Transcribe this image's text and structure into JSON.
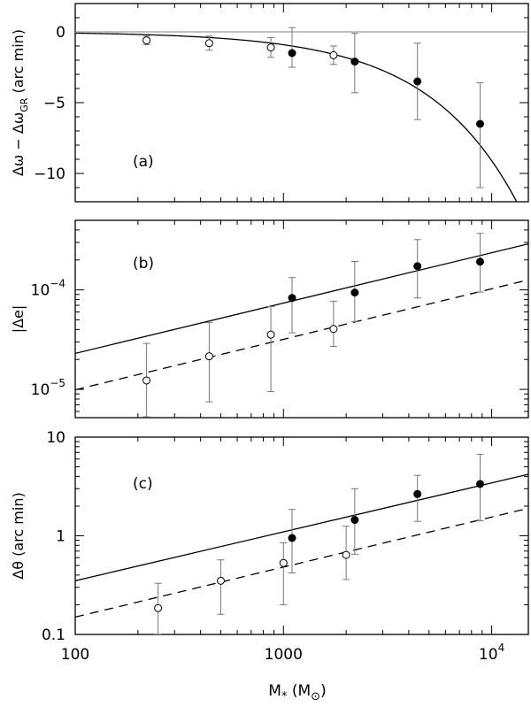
{
  "chart_data": [
    {
      "panel_label": "(a)",
      "type": "scatter",
      "ylabel": {
        "main": "Δω − Δω",
        "sub": "GR",
        "tail": " (arc min)"
      },
      "yscale": "linear",
      "xscale": "log",
      "xlim": [
        100,
        15000
      ],
      "ylim": [
        -12,
        2
      ],
      "yticks": [
        {
          "v": 0,
          "t": "0"
        },
        {
          "v": -5,
          "t": "−5"
        },
        {
          "v": -10,
          "t": "−10"
        }
      ],
      "reference_line_y": 0,
      "open_points": [
        {
          "x": 220,
          "y": -0.6,
          "lo": -0.9,
          "hi": -0.3
        },
        {
          "x": 440,
          "y": -0.8,
          "lo": -1.3,
          "hi": -0.3
        },
        {
          "x": 870,
          "y": -1.1,
          "lo": -1.8,
          "hi": -0.4
        },
        {
          "x": 1740,
          "y": -1.65,
          "lo": -2.3,
          "hi": -1.0
        }
      ],
      "filled_points": [
        {
          "x": 1100,
          "y": -1.5,
          "lo": -2.5,
          "hi": 0.3
        },
        {
          "x": 2200,
          "y": -2.1,
          "lo": -4.3,
          "hi": -0.1
        },
        {
          "x": 4400,
          "y": -3.5,
          "lo": -6.2,
          "hi": -0.8
        },
        {
          "x": 8800,
          "y": -6.5,
          "lo": -11.0,
          "hi": -3.6
        }
      ],
      "fit_lines": [
        {
          "style": "solid",
          "form": "linear",
          "slope_per_mass": -0.00091
        }
      ]
    },
    {
      "panel_label": "(b)",
      "type": "scatter",
      "ylabel": {
        "main": "|Δe|"
      },
      "yscale": "log",
      "xscale": "log",
      "xlim": [
        100,
        15000
      ],
      "ylim": [
        5.2e-06,
        0.0005
      ],
      "yticks": [
        {
          "v": 1e-05,
          "base": "10",
          "exp": "−5"
        },
        {
          "v": 0.0001,
          "base": "10",
          "exp": "−4"
        }
      ],
      "open_points": [
        {
          "x": 220,
          "y": 1.23e-05,
          "lo": 5.3e-06,
          "hi": 2.9e-05
        },
        {
          "x": 440,
          "y": 2.15e-05,
          "lo": 7.5e-06,
          "hi": 4.7e-05
        },
        {
          "x": 870,
          "y": 3.55e-05,
          "lo": 9.5e-06,
          "hi": 6.8e-05
        },
        {
          "x": 1740,
          "y": 4.05e-05,
          "lo": 2.7e-05,
          "hi": 7.7e-05
        }
      ],
      "filled_points": [
        {
          "x": 1100,
          "y": 8.3e-05,
          "lo": 3.7e-05,
          "hi": 0.000133
        },
        {
          "x": 2200,
          "y": 9.4e-05,
          "lo": 4.8e-05,
          "hi": 0.000193
        },
        {
          "x": 4400,
          "y": 0.000173,
          "lo": 8.3e-05,
          "hi": 0.00032
        },
        {
          "x": 8800,
          "y": 0.000192,
          "lo": 9.5e-05,
          "hi": 0.00037
        }
      ],
      "fit_lines": [
        {
          "style": "solid",
          "form": "power",
          "x0": 100,
          "y0": 2.3e-05,
          "x1": 15000,
          "y1": 0.00029
        },
        {
          "style": "dashed",
          "form": "power",
          "x0": 100,
          "y0": 9.9e-06,
          "x1": 15000,
          "y1": 0.000126
        }
      ]
    },
    {
      "panel_label": "(c)",
      "type": "scatter",
      "ylabel": {
        "main": "Δθ (arc min)"
      },
      "yscale": "log",
      "xscale": "log",
      "xlim": [
        100,
        15000
      ],
      "ylim": [
        0.1,
        10
      ],
      "yticks": [
        {
          "v": 0.1,
          "t": "0.1"
        },
        {
          "v": 1,
          "t": "1"
        },
        {
          "v": 10,
          "t": "10"
        }
      ],
      "xticks": [
        {
          "v": 100,
          "t": "100"
        },
        {
          "v": 1000,
          "t": "1000"
        },
        {
          "v": 10000,
          "base": "10",
          "exp": "4"
        }
      ],
      "xlabel": {
        "main": "M",
        "sub": "*",
        "tail": " (M",
        "tail_sub": "⊙",
        "close": ")"
      },
      "open_points": [
        {
          "x": 250,
          "y": 0.185,
          "lo": 0.1,
          "hi": 0.33
        },
        {
          "x": 500,
          "y": 0.35,
          "lo": 0.16,
          "hi": 0.57
        },
        {
          "x": 1000,
          "y": 0.53,
          "lo": 0.2,
          "hi": 0.85
        },
        {
          "x": 2000,
          "y": 0.64,
          "lo": 0.36,
          "hi": 1.25
        }
      ],
      "filled_points": [
        {
          "x": 1100,
          "y": 0.95,
          "lo": 0.42,
          "hi": 1.85
        },
        {
          "x": 2200,
          "y": 1.45,
          "lo": 0.65,
          "hi": 3.0
        },
        {
          "x": 4400,
          "y": 2.65,
          "lo": 1.4,
          "hi": 4.1
        },
        {
          "x": 8800,
          "y": 3.35,
          "lo": 1.42,
          "hi": 6.7
        }
      ],
      "fit_lines": [
        {
          "style": "solid",
          "form": "power",
          "x0": 100,
          "y0": 0.35,
          "x1": 15000,
          "y1": 4.2
        },
        {
          "style": "dashed",
          "form": "power",
          "x0": 100,
          "y0": 0.15,
          "x1": 15000,
          "y1": 1.9
        }
      ]
    }
  ]
}
